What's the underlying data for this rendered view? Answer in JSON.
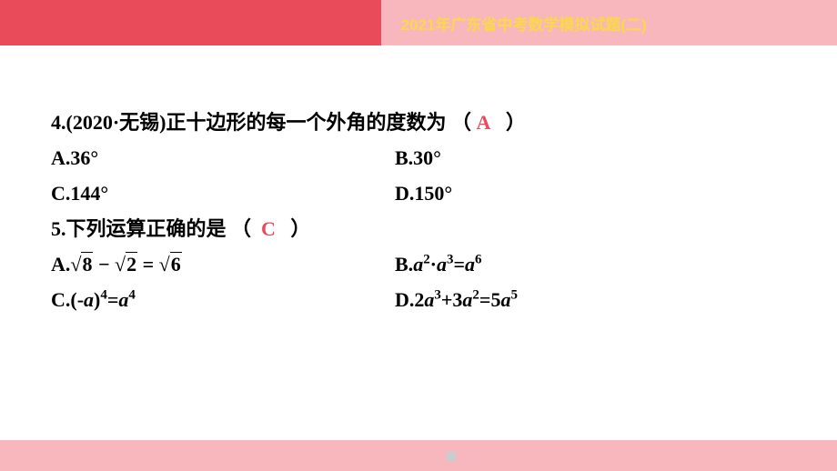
{
  "header": {
    "title": "2021年广东省中考数学模拟试题(二)"
  },
  "q4": {
    "prefix": "4.(2020·无锡)",
    "text": "正十边形的每一个外角的度数为",
    "open": "（",
    "close": "）",
    "answer": "A",
    "optA": "A.36°",
    "optB": "B.30°",
    "optC": "C.144°",
    "optD": "D.150°"
  },
  "q5": {
    "prefix": "5.",
    "text": "下列运算正确的是",
    "open": "（",
    "close": "）",
    "answer": "C",
    "optA_label": "A.",
    "optA_s1": "8",
    "optA_minus": " − ",
    "optA_s2": "2",
    "optA_eq": " = ",
    "optA_s3": "6",
    "optB_label": "B.",
    "optB_a1": "a",
    "optB_e1": "2",
    "optB_dot": "·",
    "optB_a2": "a",
    "optB_e2": "3",
    "optB_eq": "=",
    "optB_a3": "a",
    "optB_e3": "6",
    "optC_label": "C.",
    "optC_lp": "(-",
    "optC_a1": "a",
    "optC_rp": ")",
    "optC_e1": "4",
    "optC_eq": "=",
    "optC_a2": "a",
    "optC_e2": "4",
    "optD_label": "D.",
    "optD_c1": "2",
    "optD_a1": "a",
    "optD_e1": "3",
    "optD_plus": "+3",
    "optD_a2": "a",
    "optD_e2": "2",
    "optD_eq": "=5",
    "optD_a3": "a",
    "optD_e3": "5"
  },
  "colors": {
    "accent": "#e94b5b",
    "headerRight": "#f8b6bd",
    "headerTitle": "#fbd84a",
    "text": "#000000",
    "background": "#ffffff"
  }
}
